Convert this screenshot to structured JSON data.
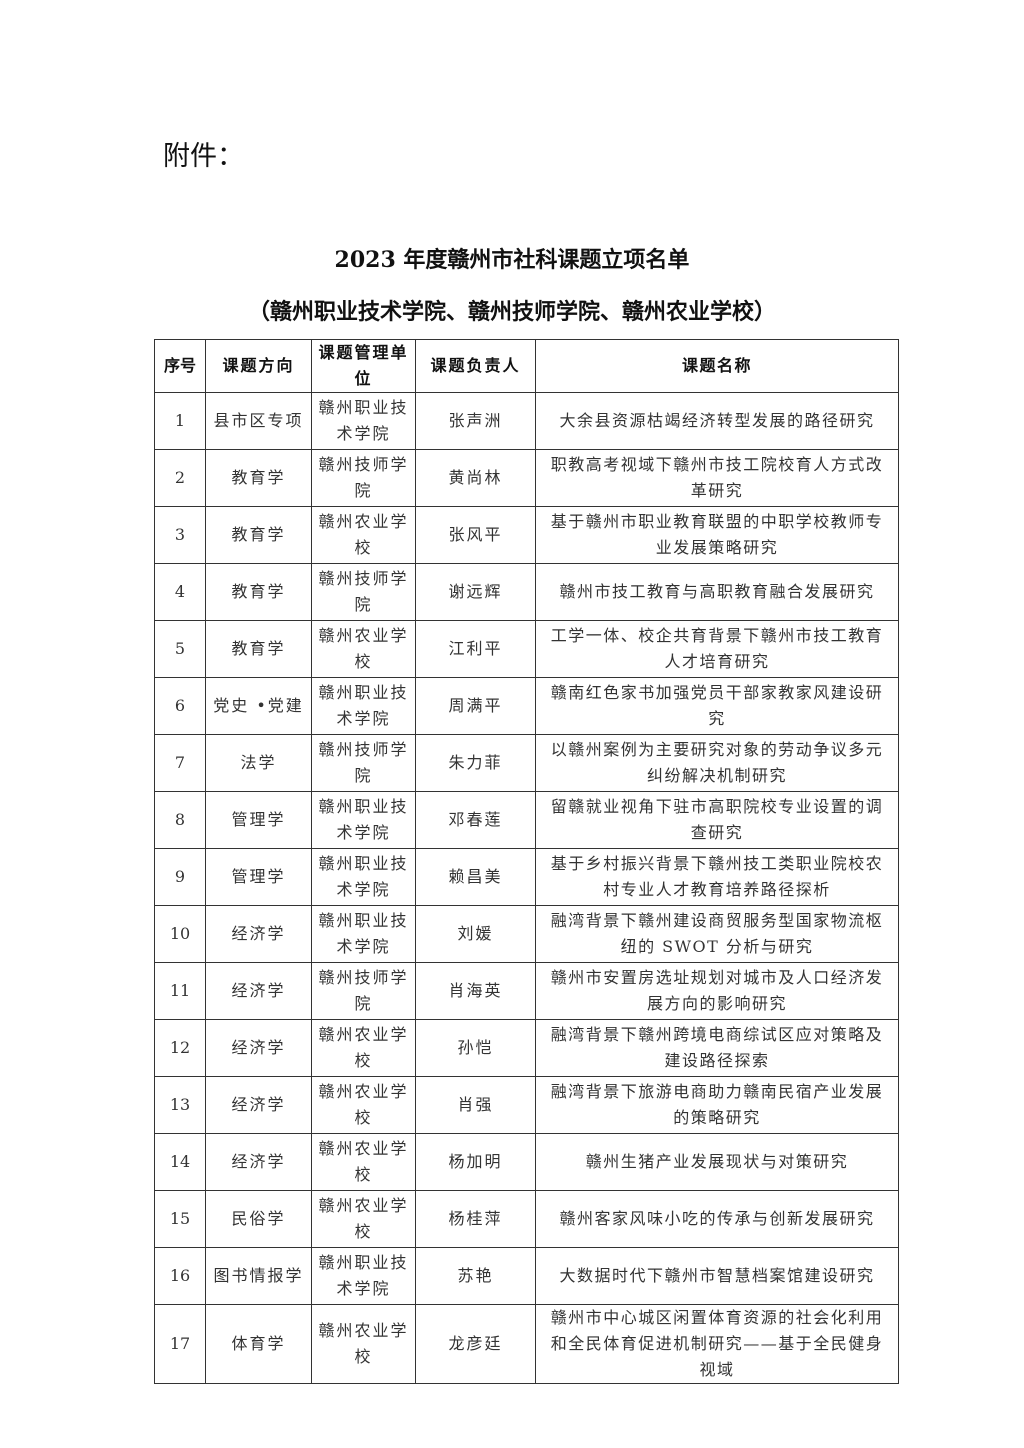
{
  "attachment_label": "附件：",
  "title": "2023 年度赣州市社科课题立项名单",
  "subtitle": "（赣州职业技术学院、赣州技师学院、赣州农业学校）",
  "table": {
    "headers": [
      "序号",
      "课题方向",
      "课题管理单位",
      "课题负责人",
      "课题名称"
    ],
    "rows": [
      {
        "no": "1",
        "field": "县市区专项",
        "unit": "赣州职业技术学院",
        "leader": "张声洲",
        "topic": "大余县资源枯竭经济转型发展的路径研究"
      },
      {
        "no": "2",
        "field": "教育学",
        "unit": "赣州技师学院",
        "leader": "黄尚林",
        "topic": "职教高考视域下赣州市技工院校育人方式改革研究"
      },
      {
        "no": "3",
        "field": "教育学",
        "unit": "赣州农业学校",
        "leader": "张风平",
        "topic": "基于赣州市职业教育联盟的中职学校教师专业发展策略研究"
      },
      {
        "no": "4",
        "field": "教育学",
        "unit": "赣州技师学院",
        "leader": "谢远辉",
        "topic": "赣州市技工教育与高职教育融合发展研究"
      },
      {
        "no": "5",
        "field": "教育学",
        "unit": "赣州农业学校",
        "leader": "江利平",
        "topic": "工学一体、校企共育背景下赣州市技工教育人才培育研究"
      },
      {
        "no": "6",
        "field": "党史 •党建",
        "unit": "赣州职业技术学院",
        "leader": "周满平",
        "topic": "赣南红色家书加强党员干部家教家风建设研究"
      },
      {
        "no": "7",
        "field": "法学",
        "unit": "赣州技师学院",
        "leader": "朱力菲",
        "topic": "以赣州案例为主要研究对象的劳动争议多元纠纷解决机制研究"
      },
      {
        "no": "8",
        "field": "管理学",
        "unit": "赣州职业技术学院",
        "leader": "邓春莲",
        "topic": "留赣就业视角下驻市高职院校专业设置的调查研究"
      },
      {
        "no": "9",
        "field": "管理学",
        "unit": "赣州职业技术学院",
        "leader": "赖昌美",
        "topic": "基于乡村振兴背景下赣州技工类职业院校农村专业人才教育培养路径探析"
      },
      {
        "no": "10",
        "field": "经济学",
        "unit": "赣州职业技术学院",
        "leader": "刘媛",
        "topic": "融湾背景下赣州建设商贸服务型国家物流枢纽的 SWOT 分析与研究"
      },
      {
        "no": "11",
        "field": "经济学",
        "unit": "赣州技师学院",
        "leader": "肖海英",
        "topic": "赣州市安置房选址规划对城市及人口经济发展方向的影响研究"
      },
      {
        "no": "12",
        "field": "经济学",
        "unit": "赣州农业学校",
        "leader": "孙恺",
        "topic": "融湾背景下赣州跨境电商综试区应对策略及建设路径探索"
      },
      {
        "no": "13",
        "field": "经济学",
        "unit": "赣州农业学校",
        "leader": "肖强",
        "topic": "融湾背景下旅游电商助力赣南民宿产业发展的策略研究"
      },
      {
        "no": "14",
        "field": "经济学",
        "unit": "赣州农业学校",
        "leader": "杨加明",
        "topic": "赣州生猪产业发展现状与对策研究"
      },
      {
        "no": "15",
        "field": "民俗学",
        "unit": "赣州农业学校",
        "leader": "杨桂萍",
        "topic": "赣州客家风味小吃的传承与创新发展研究"
      },
      {
        "no": "16",
        "field": "图书情报学",
        "unit": "赣州职业技术学院",
        "leader": "苏艳",
        "topic": "大数据时代下赣州市智慧档案馆建设研究"
      },
      {
        "no": "17",
        "field": "体育学",
        "unit": "赣州农业学校",
        "leader": "龙彦廷",
        "topic": "赣州市中心城区闲置体育资源的社会化利用和全民体育促进机制研究——基于全民健身视域"
      }
    ]
  }
}
